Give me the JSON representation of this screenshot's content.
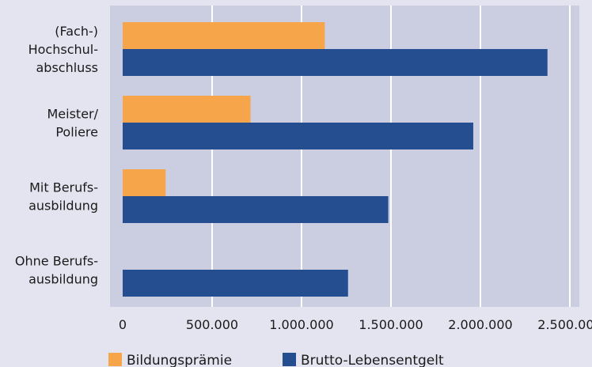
{
  "chart_data": {
    "type": "bar",
    "orientation": "horizontal",
    "categories": [
      [
        "(Fach-)",
        "Hochschul-",
        "abschluss"
      ],
      [
        "Meister/",
        "Poliere"
      ],
      [
        "Mit Berufs-",
        "ausbildung"
      ],
      [
        "Ohne Berufs-",
        "ausbildung"
      ]
    ],
    "series": [
      {
        "name": "Bildungsprämie",
        "color": "#f7a54a",
        "values": [
          1130000,
          715000,
          240000,
          0
        ]
      },
      {
        "name": "Brutto-Lebensentgelt",
        "color": "#244e8f",
        "values": [
          2375000,
          1960000,
          1485000,
          1260000
        ]
      }
    ],
    "xlim": [
      0,
      2650000
    ],
    "xticks": [
      0,
      500000,
      1000000,
      1500000,
      2000000,
      2500000
    ],
    "xtick_labels": [
      "0",
      "500.000",
      "1.000.000",
      "1.500.000",
      "2.000.000",
      "2.500.000"
    ],
    "grid": true,
    "legend_position": "bottom",
    "plot_background": "#cbcde0",
    "page_background": "#e4e4f0",
    "gridline_color": "#ffffff"
  }
}
